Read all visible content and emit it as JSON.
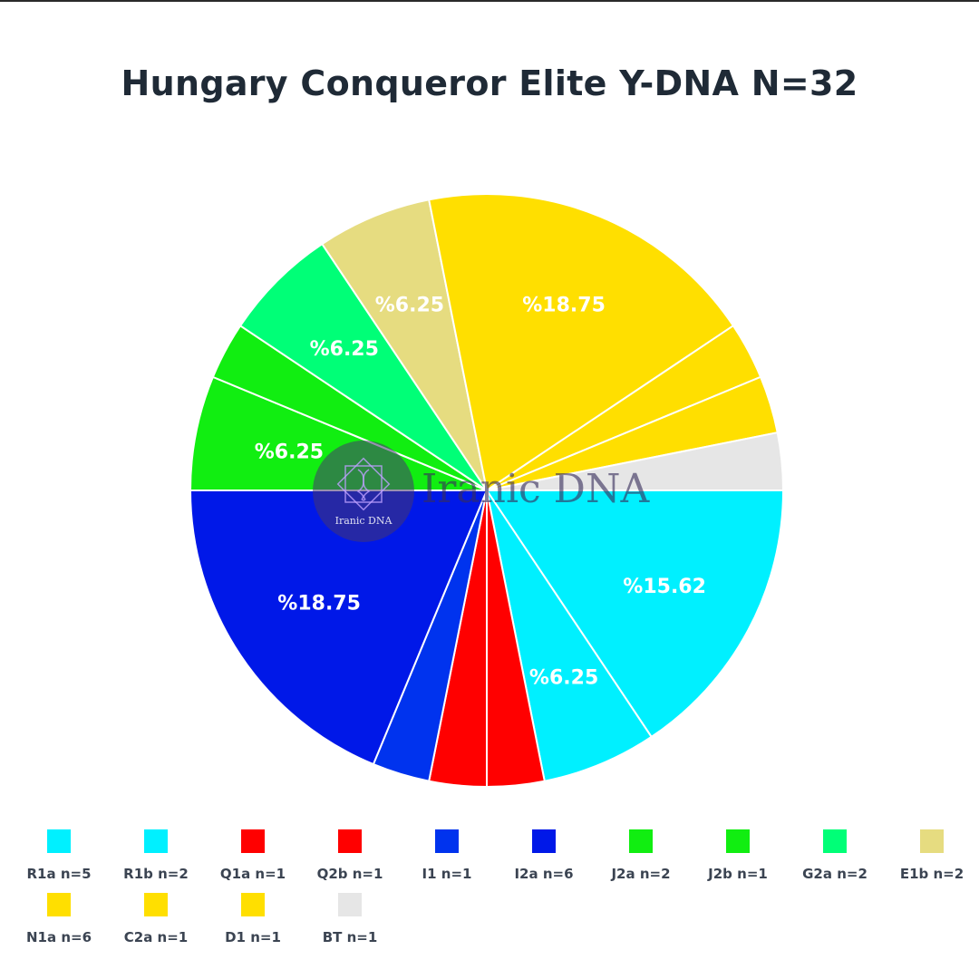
{
  "chart_data": {
    "type": "pie",
    "title": "Hungary Conqueror Elite Y-DNA N=32",
    "slices": [
      {
        "label": "R1a n=5",
        "value": 5,
        "color": "#00f0ff",
        "pct_label": "%15.62"
      },
      {
        "label": "R1b n=2",
        "value": 2,
        "color": "#00f0ff",
        "pct_label": "%6.25"
      },
      {
        "label": "Q1a n=1",
        "value": 1,
        "color": "#ff0000",
        "pct_label": ""
      },
      {
        "label": "Q2b n=1",
        "value": 1,
        "color": "#ff0000",
        "pct_label": ""
      },
      {
        "label": "I1 n=1",
        "value": 1,
        "color": "#0033ee",
        "pct_label": ""
      },
      {
        "label": "I2a n=6",
        "value": 6,
        "color": "#0018e8",
        "pct_label": "%18.75"
      },
      {
        "label": "J2a n=2",
        "value": 2,
        "color": "#11ee11",
        "pct_label": "%6.25"
      },
      {
        "label": "J2b n=1",
        "value": 1,
        "color": "#11ee11",
        "pct_label": ""
      },
      {
        "label": "G2a n=2",
        "value": 2,
        "color": "#00ff77",
        "pct_label": "%6.25"
      },
      {
        "label": "E1b n=2",
        "value": 2,
        "color": "#e6dc80",
        "pct_label": "%6.25"
      },
      {
        "label": "N1a n=6",
        "value": 6,
        "color": "#ffdf00",
        "pct_label": "%18.75"
      },
      {
        "label": "C2a n=1",
        "value": 1,
        "color": "#ffdf00",
        "pct_label": ""
      },
      {
        "label": "D1 n=1",
        "value": 1,
        "color": "#ffdf00",
        "pct_label": ""
      },
      {
        "label": "BT n=1",
        "value": 1,
        "color": "#e6e6e6",
        "pct_label": ""
      }
    ],
    "total": 32,
    "legend_placement": "bottom"
  },
  "watermark": {
    "text_large": "Iranic DNA",
    "text_small": "Iranic DNA"
  }
}
